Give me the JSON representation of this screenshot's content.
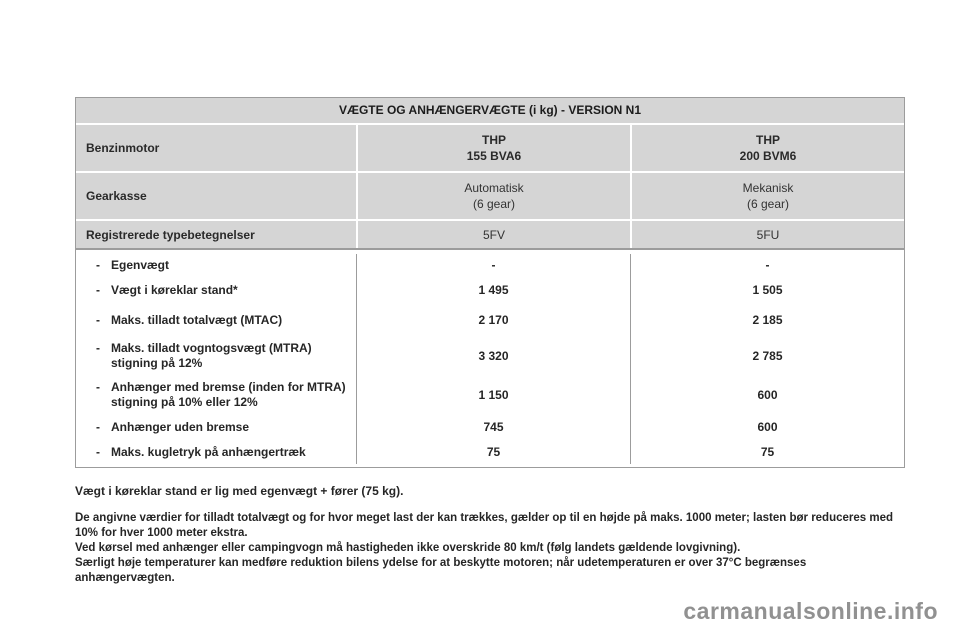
{
  "table": {
    "title": "VÆGTE OG ANHÆNGERVÆGTE (i kg) - VERSION N1",
    "engine_row": {
      "label": "Benzinmotor",
      "col1_line1": "THP",
      "col1_line2": "155 BVA6",
      "col2_line1": "THP",
      "col2_line2": "200 BVM6"
    },
    "gearbox_row": {
      "label": "Gearkasse",
      "col1_line1": "Automatisk",
      "col1_line2": "(6 gear)",
      "col2_line1": "Mekanisk",
      "col2_line2": "(6 gear)"
    },
    "type_row": {
      "label": "Registrerede typebetegnelser",
      "col1": "5FV",
      "col2": "5FU"
    },
    "bullet": "-",
    "body_rows": [
      {
        "label": "Egenvægt",
        "label2": "",
        "col1": "-",
        "col2": "-"
      },
      {
        "label": "Vægt i køreklar stand*",
        "label2": "",
        "col1": "1 495",
        "col2": "1 505"
      },
      {
        "label": "Maks. tilladt totalvægt (MTAC)",
        "label2": "",
        "col1": "2 170",
        "col2": "2 185"
      },
      {
        "label": "Maks. tilladt vogntogsvægt (MTRA)",
        "label2": "stigning på 12%",
        "col1": "3 320",
        "col2": "2 785"
      },
      {
        "label": "Anhænger med bremse (inden for MTRA)",
        "label2": "stigning på 10% eller 12%",
        "col1": "1 150",
        "col2": "600"
      },
      {
        "label": "Anhænger uden bremse",
        "label2": "",
        "col1": "745",
        "col2": "600"
      },
      {
        "label": "Maks. kugletryk på anhængertræk",
        "label2": "",
        "col1": "75",
        "col2": "75"
      }
    ]
  },
  "footnote": "Vægt i køreklar stand er lig med egenvægt + fører (75 kg).",
  "notes_lines": [
    "De angivne værdier for tilladt totalvægt og for hvor meget last der kan trækkes, gælder op til en højde på maks. 1000 meter; lasten bør reduceres med",
    "10% for hver 1000 meter ekstra.",
    "Ved kørsel med anhænger eller campingvogn må hastigheden ikke overskride 80 km/t (følg landets gældende lovgivning).",
    "Særligt høje temperaturer kan medføre reduktion bilens ydelse for at beskytte motoren; når udetemperaturen er over 37°C begrænses",
    "anhængervægten."
  ],
  "watermark": "carmanualsonline.info",
  "colors": {
    "header_bg": "#d5d5d5",
    "table_border": "#9c9c9c",
    "watermark": "#919191"
  }
}
